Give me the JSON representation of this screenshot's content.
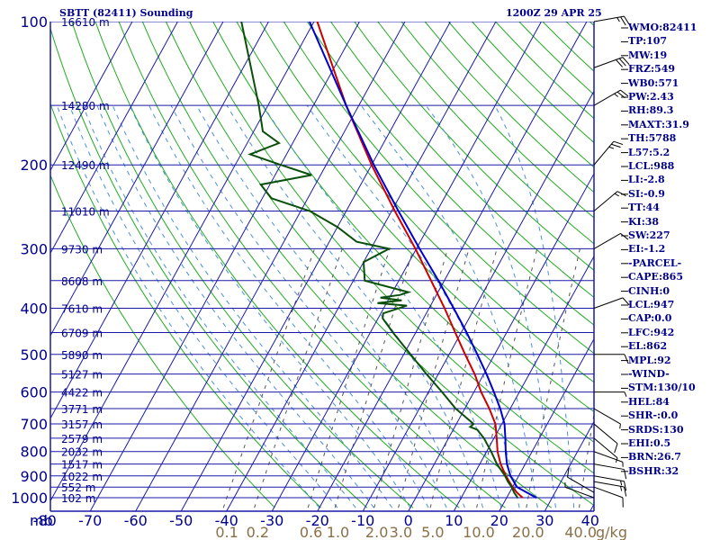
{
  "chart_data": {
    "type": "line",
    "title": "SBTT (82411) Sounding",
    "timestamp": "1200Z 29 APR 25",
    "y_axis_unit": "mb",
    "x_axis_unit": "C",
    "mixing_ratio_unit": "g/kg",
    "pressure_ticks": [
      "100",
      "200",
      "300",
      "400",
      "500",
      "600",
      "700",
      "800",
      "900",
      "1000"
    ],
    "temperature_ticks": [
      "-80",
      "-70",
      "-60",
      "-50",
      "-40",
      "-30",
      "-20",
      "-10",
      "0",
      "10",
      "20",
      "30",
      "40"
    ],
    "mixing_ratio_labels": [
      "0.1",
      "0.2",
      "0.6",
      "1.0",
      "2.0",
      "3.0",
      "5.0",
      "10.0",
      "20.0",
      "40.0"
    ],
    "height_labels": [
      {
        "p": 100,
        "text": "16610 m"
      },
      {
        "p": 150,
        "text": "14280 m"
      },
      {
        "p": 200,
        "text": "12490 m"
      },
      {
        "p": 250,
        "text": "11010 m"
      },
      {
        "p": 300,
        "text": "9730 m"
      },
      {
        "p": 350,
        "text": "8608 m"
      },
      {
        "p": 400,
        "text": "7610 m"
      },
      {
        "p": 450,
        "text": "6709 m"
      },
      {
        "p": 500,
        "text": "5890 m"
      },
      {
        "p": 550,
        "text": "5127 m"
      },
      {
        "p": 600,
        "text": "4422 m"
      },
      {
        "p": 650,
        "text": "3771 m"
      },
      {
        "p": 700,
        "text": "3157 m"
      },
      {
        "p": 750,
        "text": "2579 m"
      },
      {
        "p": 800,
        "text": "2032 m"
      },
      {
        "p": 850,
        "text": "1517 m"
      },
      {
        "p": 900,
        "text": "1022 m"
      },
      {
        "p": 950,
        "text": "552 m"
      },
      {
        "p": 1000,
        "text": "102 m"
      }
    ],
    "series": [
      {
        "name": "",
        "color": "#cc0000",
        "points": [
          [
            1000,
            23.5
          ],
          [
            975,
            21.6
          ],
          [
            950,
            20.0
          ],
          [
            925,
            18.6
          ],
          [
            900,
            17.2
          ],
          [
            850,
            14.6
          ],
          [
            800,
            12.4
          ],
          [
            750,
            10.6
          ],
          [
            700,
            8.6
          ],
          [
            650,
            5.4
          ],
          [
            600,
            1.6
          ],
          [
            550,
            -2.0
          ],
          [
            500,
            -6.5
          ],
          [
            450,
            -11.3
          ],
          [
            400,
            -16.6
          ],
          [
            350,
            -22.9
          ],
          [
            300,
            -30.2
          ],
          [
            250,
            -39.3
          ],
          [
            200,
            -50.0
          ],
          [
            150,
            -62.8
          ],
          [
            100,
            -79.3
          ]
        ]
      },
      {
        "name": "",
        "color": "#0a4f0a",
        "points": [
          [
            1000,
            22.4
          ],
          [
            975,
            21.0
          ],
          [
            950,
            19.8
          ],
          [
            925,
            18.3
          ],
          [
            900,
            17.0
          ],
          [
            850,
            13.8
          ],
          [
            800,
            11.0
          ],
          [
            750,
            7.8
          ],
          [
            720,
            5.3
          ],
          [
            710,
            3.4
          ],
          [
            700,
            3.8
          ],
          [
            650,
            -2.0
          ],
          [
            600,
            -7.0
          ],
          [
            550,
            -12.6
          ],
          [
            500,
            -18.5
          ],
          [
            450,
            -25.0
          ],
          [
            420,
            -29.0
          ],
          [
            410,
            -29.5
          ],
          [
            395,
            -25.2
          ],
          [
            390,
            -32.0
          ],
          [
            385,
            -27.0
          ],
          [
            380,
            -32.0
          ],
          [
            375,
            -28.0
          ],
          [
            370,
            -26.5
          ],
          [
            350,
            -37.5
          ],
          [
            320,
            -40.0
          ],
          [
            300,
            -36.0
          ],
          [
            290,
            -44.0
          ],
          [
            270,
            -50.0
          ],
          [
            250,
            -58.0
          ],
          [
            235,
            -68.0
          ],
          [
            220,
            -72.0
          ],
          [
            210,
            -62.0
          ],
          [
            200,
            -70.0
          ],
          [
            190,
            -78.0
          ],
          [
            180,
            -73.0
          ],
          [
            170,
            -78.0
          ],
          [
            150,
            -82.0
          ],
          [
            100,
            -96.0
          ]
        ]
      },
      {
        "name": "",
        "color": "#0000cc",
        "points": [
          [
            1000,
            26.5
          ],
          [
            950,
            21.0
          ],
          [
            900,
            18.2
          ],
          [
            850,
            16.0
          ],
          [
            800,
            14.2
          ],
          [
            750,
            12.5
          ],
          [
            700,
            10.6
          ],
          [
            650,
            7.8
          ],
          [
            600,
            4.4
          ],
          [
            550,
            0.6
          ],
          [
            500,
            -3.8
          ],
          [
            450,
            -8.8
          ],
          [
            400,
            -14.6
          ],
          [
            350,
            -21.3
          ],
          [
            300,
            -29.3
          ],
          [
            250,
            -38.5
          ],
          [
            200,
            -49.5
          ],
          [
            150,
            -62.8
          ],
          [
            100,
            -81.0
          ]
        ]
      }
    ],
    "wind_barbs": [
      {
        "p": 1000,
        "dir": 290,
        "spd": 5
      },
      {
        "p": 975,
        "dir": 300,
        "spd": 10
      },
      {
        "p": 950,
        "dir": 110,
        "spd": 10
      },
      {
        "p": 925,
        "dir": 100,
        "spd": 15
      },
      {
        "p": 900,
        "dir": 100,
        "spd": 15
      },
      {
        "p": 850,
        "dir": 100,
        "spd": 10
      },
      {
        "p": 800,
        "dir": 110,
        "spd": 5
      },
      {
        "p": 750,
        "dir": 130,
        "spd": 5
      },
      {
        "p": 700,
        "dir": 130,
        "spd": 10
      },
      {
        "p": 650,
        "dir": 120,
        "spd": 5
      },
      {
        "p": 600,
        "dir": 90,
        "spd": 5
      },
      {
        "p": 500,
        "dir": 90,
        "spd": 10
      },
      {
        "p": 400,
        "dir": 70,
        "spd": 10
      },
      {
        "p": 300,
        "dir": 60,
        "spd": 10
      },
      {
        "p": 250,
        "dir": 50,
        "spd": 15
      },
      {
        "p": 200,
        "dir": 40,
        "spd": 25
      },
      {
        "p": 150,
        "dir": 60,
        "spd": 25
      },
      {
        "p": 125,
        "dir": 70,
        "spd": 30
      },
      {
        "p": 100,
        "dir": 80,
        "spd": 25
      }
    ]
  },
  "indices": [
    "WMO:82411",
    "TP:107",
    "MW:19",
    "FRZ:549",
    "WB0:571",
    "PW:2.43",
    "RH:89.3",
    "MAXT:31.9",
    "TH:5788",
    "L57:5.2",
    "LCL:988",
    "LI:-2.8",
    "SI:-0.9",
    "TT:44",
    "KI:38",
    "SW:227",
    "EI:-1.2",
    "-PARCEL-",
    "CAPE:865",
    "CINH:0",
    "LCL:947",
    "CAP:0.0",
    "LFC:942",
    "EL:862",
    "MPL:92",
    "-WIND-",
    "STM:130/10",
    "HEL:84",
    "SHR-:0.0",
    "SRDS:130",
    "EHI:0.5",
    "BRN:26.7",
    "BSHR:32"
  ]
}
